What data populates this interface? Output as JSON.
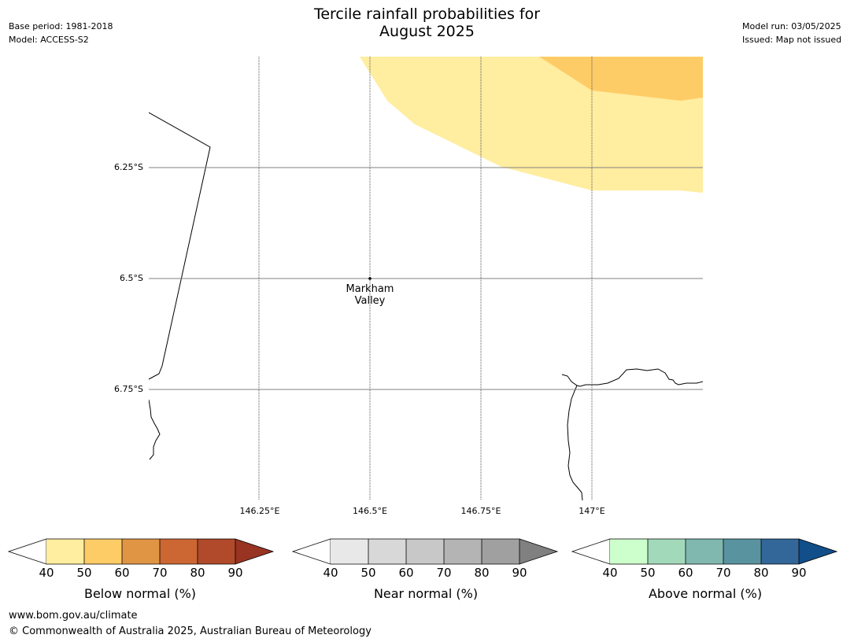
{
  "header": {
    "title_line1": "Tercile rainfall probabilities for",
    "title_line2": "August 2025",
    "base_period": "Base period: 1981-2018",
    "model": "Model: ACCESS-S2",
    "model_run": "Model run: 03/05/2025",
    "issued": "Issued: Map not issued"
  },
  "map": {
    "lat_labels": [
      "6.25°S",
      "6.5°S",
      "6.75°S"
    ],
    "lon_labels": [
      "146.25°E",
      "146.5°E",
      "146.75°E",
      "147°E"
    ],
    "place": {
      "name_line1": "Markham",
      "name_line2": "Valley"
    },
    "colors": {
      "light_yellow": "#ffeda0",
      "orange": "#fecc66",
      "gridline": "#808080"
    }
  },
  "colorbars": [
    {
      "label": "Below normal (%)",
      "ticks": [
        "40",
        "50",
        "60",
        "70",
        "80",
        "90"
      ],
      "colors": [
        "#ffffff",
        "#ffeda0",
        "#fecc66",
        "#e09545",
        "#cc6633",
        "#b04a2a",
        "#993322"
      ]
    },
    {
      "label": "Near normal (%)",
      "ticks": [
        "40",
        "50",
        "60",
        "70",
        "80",
        "90"
      ],
      "colors": [
        "#ffffff",
        "#e8e8e8",
        "#d8d8d8",
        "#c8c8c8",
        "#b4b4b4",
        "#a0a0a0",
        "#808080"
      ]
    },
    {
      "label": "Above normal (%)",
      "ticks": [
        "40",
        "50",
        "60",
        "70",
        "80",
        "90"
      ],
      "colors": [
        "#ffffff",
        "#ccffcc",
        "#a3d9bb",
        "#80b8b0",
        "#5a93a0",
        "#336699",
        "#124e89"
      ]
    }
  ],
  "footer": {
    "url": "www.bom.gov.au/climate",
    "copyright": "© Commonwealth of Australia 2025, Australian Bureau of Meteorology"
  }
}
